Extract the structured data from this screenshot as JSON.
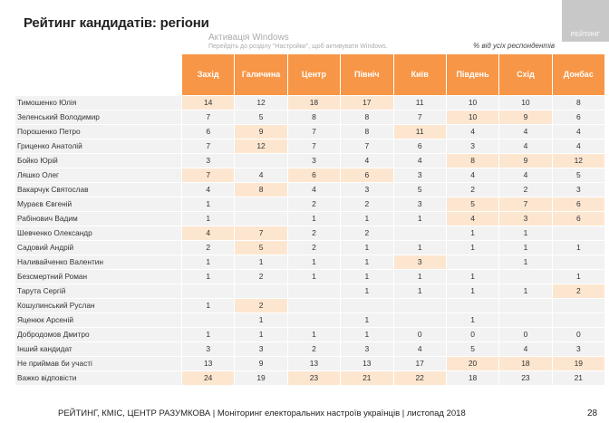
{
  "title": "Рейтинг кандидатів: регіони",
  "logo_text": "РЕЙТИНГ",
  "subtitle": "% від усіх респондентів",
  "columns": [
    "Захід",
    "Галичина",
    "Центр",
    "Північ",
    "Київ",
    "Південь",
    "Схід",
    "Донбас"
  ],
  "highlight_color": "#fde6d0",
  "header_color": "#f79646",
  "rows": [
    {
      "name": "Тимошенко Юлія",
      "values": [
        "14",
        "12",
        "18",
        "17",
        "11",
        "10",
        "10",
        "8"
      ],
      "hl": [
        0,
        2,
        3
      ]
    },
    {
      "name": "Зеленський Володимир",
      "values": [
        "7",
        "5",
        "8",
        "8",
        "7",
        "10",
        "9",
        "6"
      ],
      "hl": [
        5,
        6
      ]
    },
    {
      "name": "Порошенко Петро",
      "values": [
        "6",
        "9",
        "7",
        "8",
        "11",
        "4",
        "4",
        "4"
      ],
      "hl": [
        1,
        4
      ]
    },
    {
      "name": "Гриценко Анатолій",
      "values": [
        "7",
        "12",
        "7",
        "7",
        "6",
        "3",
        "4",
        "4"
      ],
      "hl": [
        1
      ]
    },
    {
      "name": "Бойко Юрій",
      "values": [
        "3",
        "",
        "3",
        "4",
        "4",
        "8",
        "9",
        "12"
      ],
      "hl": [
        5,
        6,
        7
      ]
    },
    {
      "name": "Ляшко Олег",
      "values": [
        "7",
        "4",
        "6",
        "6",
        "3",
        "4",
        "4",
        "5"
      ],
      "hl": [
        0,
        2,
        3
      ]
    },
    {
      "name": "Вакарчук Святослав",
      "values": [
        "4",
        "8",
        "4",
        "3",
        "5",
        "2",
        "2",
        "3"
      ],
      "hl": [
        1
      ]
    },
    {
      "name": "Мураєв Євгеній",
      "values": [
        "1",
        "",
        "2",
        "2",
        "3",
        "5",
        "7",
        "6"
      ],
      "hl": [
        5,
        6,
        7
      ]
    },
    {
      "name": "Рабінович Вадим",
      "values": [
        "1",
        "",
        "1",
        "1",
        "1",
        "4",
        "3",
        "6"
      ],
      "hl": [
        5,
        6,
        7
      ]
    },
    {
      "name": "Шевченко Олександр",
      "values": [
        "4",
        "7",
        "2",
        "2",
        "",
        "1",
        "1",
        ""
      ],
      "hl": [
        0,
        1
      ]
    },
    {
      "name": "Садовий Андрій",
      "values": [
        "2",
        "5",
        "2",
        "1",
        "1",
        "1",
        "1",
        "1"
      ],
      "hl": [
        1
      ]
    },
    {
      "name": "Наливайченко Валентин",
      "values": [
        "1",
        "1",
        "1",
        "1",
        "3",
        "",
        "1",
        ""
      ],
      "hl": [
        4
      ]
    },
    {
      "name": "Безсмертний Роман",
      "values": [
        "1",
        "2",
        "1",
        "1",
        "1",
        "1",
        "",
        "1"
      ],
      "hl": []
    },
    {
      "name": "Тарута Сергій",
      "values": [
        "",
        "",
        "",
        "1",
        "1",
        "1",
        "1",
        "2"
      ],
      "hl": [
        7
      ]
    },
    {
      "name": "Кошулинський Руслан",
      "values": [
        "1",
        "2",
        "",
        "",
        "",
        "",
        "",
        ""
      ],
      "hl": [
        1
      ]
    },
    {
      "name": "Яценюк Арсеній",
      "values": [
        "",
        "1",
        "",
        "1",
        "",
        "1",
        "",
        ""
      ],
      "hl": []
    },
    {
      "name": "Добродомов Дмитро",
      "values": [
        "1",
        "1",
        "1",
        "1",
        "0",
        "0",
        "0",
        "0"
      ],
      "hl": []
    },
    {
      "name": "Інший кандидат",
      "values": [
        "3",
        "3",
        "2",
        "3",
        "4",
        "5",
        "4",
        "3"
      ],
      "hl": []
    },
    {
      "name": "Не приймав би участі",
      "values": [
        "13",
        "9",
        "13",
        "13",
        "17",
        "20",
        "18",
        "19"
      ],
      "hl": [
        5,
        6,
        7
      ]
    },
    {
      "name": "Важко відповісти",
      "values": [
        "24",
        "19",
        "23",
        "21",
        "22",
        "18",
        "23",
        "21"
      ],
      "hl": [
        0,
        2,
        3,
        4
      ]
    }
  ],
  "footer": "РЕЙТИНГ, КМІС, ЦЕНТР РАЗУМКОВА |  Моніторинг електоральних настроїв українців | листопад 2018",
  "page_number": "28",
  "watermark": {
    "line1": "Активація Windows",
    "line2": "Перейдіть до розділу \"Настройки\", щоб активувати Windows."
  }
}
